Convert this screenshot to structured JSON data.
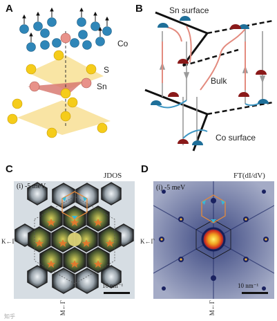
{
  "panels": {
    "a": {
      "letter": "A",
      "labels": {
        "co": "Co",
        "s": "S",
        "sn": "Sn"
      }
    },
    "b": {
      "letter": "B",
      "labels": {
        "sn_surface": "Sn surface",
        "bulk": "Bulk",
        "co_surface": "Co surface"
      }
    },
    "c": {
      "letter": "C",
      "title": "JDOS",
      "energy": "(i) -5 meV",
      "scale": "10 nm⁻¹",
      "k_axis": "K←Γ",
      "m_axis": "M←Γ"
    },
    "d": {
      "letter": "D",
      "title": "FT(dI/dV)",
      "energy": "(i) -5 meV",
      "scale": "10 nm⁻¹",
      "k_axis": "K←Γ",
      "m_axis": "M←Γ"
    }
  },
  "colors": {
    "co_atom": "#2f86b8",
    "sn_atom": "#e8928a",
    "s_atom": "#f5cc1a",
    "trap_red": "#8a1a1a",
    "trap_blue": "#1f6f99",
    "arrow_pink": "#e38a7e",
    "arrow_grey": "#9a9a9a"
  },
  "watermark": "知乎"
}
